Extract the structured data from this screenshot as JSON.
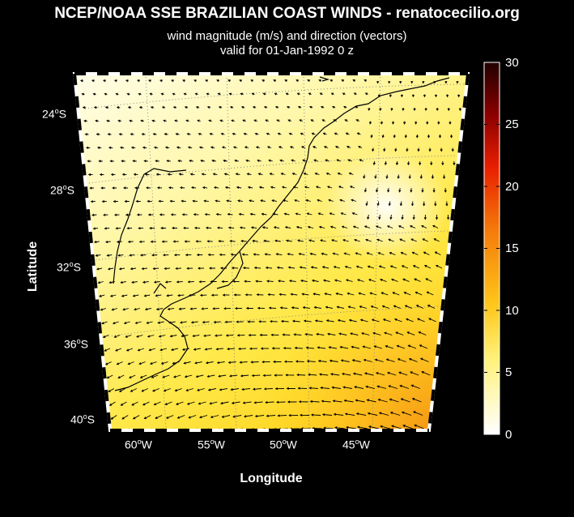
{
  "header": {
    "title": "NCEP/NOAA SSE BRAZILIAN COAST WINDS - renatocecilio.org",
    "subtitle": "wind magnitude (m/s) and direction (vectors)",
    "valid": "valid for 01-Jan-1992  0 z"
  },
  "axes": {
    "ylabel": "Latitude",
    "xlabel": "Longitude",
    "lat_ticks": [
      {
        "deg": "24",
        "hem": "S"
      },
      {
        "deg": "28",
        "hem": "S"
      },
      {
        "deg": "32",
        "hem": "S"
      },
      {
        "deg": "36",
        "hem": "S"
      },
      {
        "deg": "40",
        "hem": "S"
      }
    ],
    "lon_ticks": [
      {
        "deg": "60",
        "hem": "W"
      },
      {
        "deg": "55",
        "hem": "W"
      },
      {
        "deg": "50",
        "hem": "W"
      },
      {
        "deg": "45",
        "hem": "W"
      }
    ]
  },
  "colorbar": {
    "ticks": [
      "30",
      "25",
      "20",
      "15",
      "10",
      "5",
      "0"
    ],
    "range": [
      0,
      30
    ],
    "units": "m/s"
  },
  "colors": {
    "background": "#000000",
    "low": "#ffffff",
    "mid": "#ffe94a",
    "high": "#ff8c00",
    "max": "#200000",
    "land_line": "#000000"
  }
}
